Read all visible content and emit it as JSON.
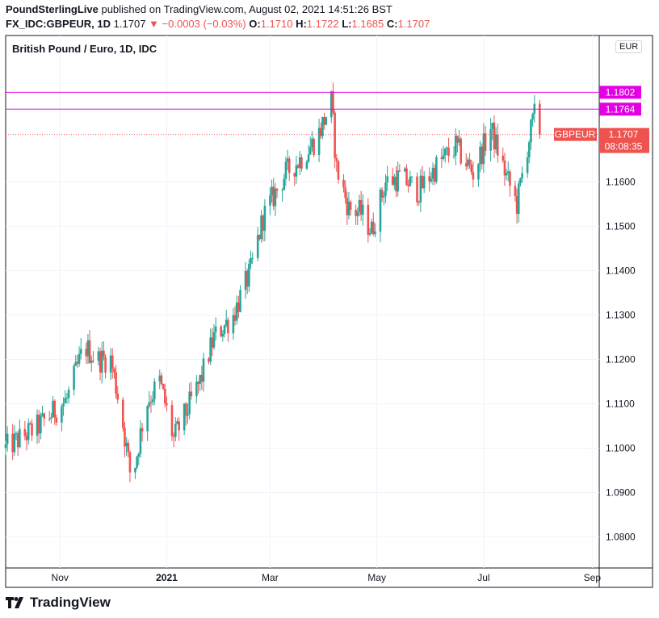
{
  "header": {
    "publisher": "PoundSterlingLive",
    "published_text": "published on TradingView.com, August 02, 2021 14:51:26 BST",
    "symbol": "FX_IDC:GBPEUR, 1D",
    "last": "1.1707",
    "change": "▼ −0.0003 (−0.03%)",
    "o_label": "O:",
    "o_value": "1.1710",
    "h_label": "H:",
    "h_value": "1.1722",
    "l_label": "L:",
    "l_value": "1.1685",
    "c_label": "C:",
    "c_value": "1.1707"
  },
  "footer": {
    "brand": "TradingView"
  },
  "chart_data": {
    "type": "candlestick",
    "title": "British Pound / Euro, 1D, IDC",
    "currency": "EUR",
    "x_ticks": [
      "Nov",
      "2021",
      "Mar",
      "May",
      "Jul",
      "Sep"
    ],
    "y_ticks": [
      "1.0800",
      "1.0900",
      "1.1000",
      "1.1100",
      "1.1200",
      "1.1300",
      "1.1400",
      "1.1500",
      "1.1600"
    ],
    "ylim": [
      1.073,
      1.193
    ],
    "grid": true,
    "colors": {
      "up": "#26a69a",
      "down": "#ef5350",
      "level": "#e400e4",
      "price": "#ef5350"
    },
    "horizontal_levels": [
      {
        "label": "1.1802",
        "value": 1.1802
      },
      {
        "label": "1.1764",
        "value": 1.1764
      }
    ],
    "last_price": {
      "symbol": "GBPEUR",
      "value": "1.1707",
      "countdown": "08:08:35"
    },
    "series_close_anchors": [
      {
        "x": "2020-10-01",
        "close": 1.1
      },
      {
        "x": "2020-10-20",
        "close": 1.105
      },
      {
        "x": "2020-11-05",
        "close": 1.111
      },
      {
        "x": "2020-11-15",
        "close": 1.123
      },
      {
        "x": "2020-11-22",
        "close": 1.12
      },
      {
        "x": "2020-11-30",
        "close": 1.12
      },
      {
        "x": "2020-12-06",
        "close": 1.108
      },
      {
        "x": "2020-12-12",
        "close": 1.092
      },
      {
        "x": "2020-12-20",
        "close": 1.11
      },
      {
        "x": "2020-12-28",
        "close": 1.115
      },
      {
        "x": "2021-01-05",
        "close": 1.102
      },
      {
        "x": "2021-01-20",
        "close": 1.115
      },
      {
        "x": "2021-01-28",
        "close": 1.125
      },
      {
        "x": "2021-02-08",
        "close": 1.13
      },
      {
        "x": "2021-02-18",
        "close": 1.14
      },
      {
        "x": "2021-02-25",
        "close": 1.152
      },
      {
        "x": "2021-03-02",
        "close": 1.156
      },
      {
        "x": "2021-03-10",
        "close": 1.162
      },
      {
        "x": "2021-03-18",
        "close": 1.165
      },
      {
        "x": "2021-03-28",
        "close": 1.17
      },
      {
        "x": "2021-04-05",
        "close": 1.178
      },
      {
        "x": "2021-04-08",
        "close": 1.163
      },
      {
        "x": "2021-04-15",
        "close": 1.154
      },
      {
        "x": "2021-04-22",
        "close": 1.153
      },
      {
        "x": "2021-04-28",
        "close": 1.149
      },
      {
        "x": "2021-05-06",
        "close": 1.16
      },
      {
        "x": "2021-05-15",
        "close": 1.161
      },
      {
        "x": "2021-05-25",
        "close": 1.158
      },
      {
        "x": "2021-06-05",
        "close": 1.164
      },
      {
        "x": "2021-06-15",
        "close": 1.168
      },
      {
        "x": "2021-06-25",
        "close": 1.162
      },
      {
        "x": "2021-07-05",
        "close": 1.172
      },
      {
        "x": "2021-07-15",
        "close": 1.16
      },
      {
        "x": "2021-07-20",
        "close": 1.155
      },
      {
        "x": "2021-07-26",
        "close": 1.168
      },
      {
        "x": "2021-07-30",
        "close": 1.175
      },
      {
        "x": "2021-08-02",
        "close": 1.1707
      }
    ]
  }
}
